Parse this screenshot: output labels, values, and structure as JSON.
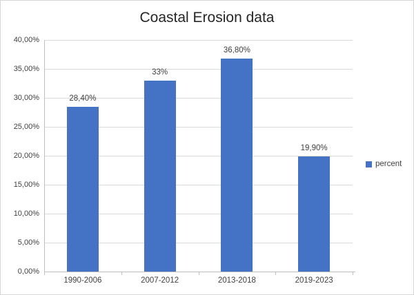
{
  "title": "Coastal Erosion data",
  "legend": {
    "label": "percent",
    "swatch_color": "#4472C4"
  },
  "colors": {
    "bar": "#4472C4",
    "gridline": "#D9D9D9",
    "axis_line": "#BFBFBF",
    "label_text": "#404040",
    "title_text": "#262626",
    "frame_border": "#D6D6D6",
    "background": "#FFFFFF"
  },
  "chart_data": {
    "type": "bar",
    "title": "Coastal Erosion data",
    "categories": [
      "1990-2006",
      "2007-2012",
      "2013-2018",
      "2019-2023"
    ],
    "series": [
      {
        "name": "percent",
        "values": [
          28.4,
          33.0,
          36.8,
          19.9
        ]
      }
    ],
    "data_labels": [
      "28,40%",
      "33%",
      "36,80%",
      "19,90%"
    ],
    "xlabel": "",
    "ylabel": "",
    "ylim": [
      0,
      40
    ],
    "ytick_step": 5,
    "ytick_labels": [
      "0,00%",
      "5,00%",
      "10,00%",
      "15,00%",
      "20,00%",
      "25,00%",
      "30,00%",
      "35,00%",
      "40,00%"
    ],
    "grid": true,
    "legend_position": "right",
    "legend_entries": [
      "percent"
    ]
  }
}
